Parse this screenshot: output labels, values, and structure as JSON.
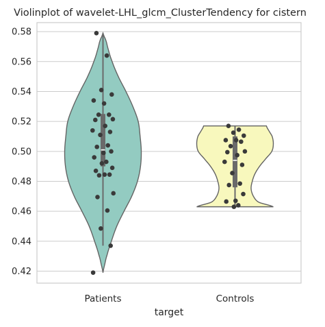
{
  "chart_data": {
    "type": "violin",
    "title": "Violinplot of wavelet-LHL_glcm_ClusterTendency for cistern",
    "xlabel": "target",
    "ylabel": "",
    "categories": [
      "Patients",
      "Controls"
    ],
    "ylim": [
      0.412,
      0.586
    ],
    "yticks": [
      0.42,
      0.44,
      0.46,
      0.48,
      0.5,
      0.52,
      0.54,
      0.56,
      0.58
    ],
    "ytick_labels": [
      "0.42",
      "0.44",
      "0.46",
      "0.48",
      "0.50",
      "0.52",
      "0.54",
      "0.56",
      "0.58"
    ],
    "grid": true,
    "colors": {
      "Patients": "#93cbc1",
      "Controls": "#f8f8bd",
      "points": "#3a3a3a",
      "violin_edge": "#636363",
      "box": "#6a6a6a",
      "median": "#ffffff"
    },
    "violins": [
      {
        "category": "Patients",
        "range": [
          0.419,
          0.579
        ],
        "box": {
          "q1": 0.49,
          "median": 0.501,
          "q3": 0.525,
          "whisker_low": 0.437,
          "whisker_high": 0.579
        },
        "density": [
          [
            0.419,
            0.0
          ],
          [
            0.425,
            0.05
          ],
          [
            0.43,
            0.1
          ],
          [
            0.44,
            0.22
          ],
          [
            0.45,
            0.36
          ],
          [
            0.46,
            0.55
          ],
          [
            0.47,
            0.75
          ],
          [
            0.48,
            0.9
          ],
          [
            0.49,
            0.98
          ],
          [
            0.5,
            1.0
          ],
          [
            0.51,
            0.97
          ],
          [
            0.52,
            0.92
          ],
          [
            0.53,
            0.78
          ],
          [
            0.54,
            0.6
          ],
          [
            0.55,
            0.4
          ],
          [
            0.56,
            0.24
          ],
          [
            0.568,
            0.14
          ],
          [
            0.574,
            0.08
          ],
          [
            0.579,
            0.0
          ]
        ],
        "points": [
          0.579,
          0.564,
          0.541,
          0.538,
          0.534,
          0.532,
          0.5245,
          0.5245,
          0.5215,
          0.521,
          0.517,
          0.514,
          0.513,
          0.511,
          0.504,
          0.503,
          0.5,
          0.499,
          0.496,
          0.493,
          0.492,
          0.489,
          0.487,
          0.4845,
          0.4845,
          0.484,
          0.472,
          0.4695,
          0.4605,
          0.4485,
          0.437,
          0.419
        ]
      },
      {
        "category": "Controls",
        "range": [
          0.463,
          0.517
        ],
        "box": {
          "q1": 0.476,
          "median": 0.494,
          "q3": 0.51,
          "whisker_low": 0.463,
          "whisker_high": 0.517
        },
        "density": [
          [
            0.463,
            1.0
          ],
          [
            0.466,
            0.62
          ],
          [
            0.47,
            0.48
          ],
          [
            0.475,
            0.42
          ],
          [
            0.48,
            0.45
          ],
          [
            0.485,
            0.52
          ],
          [
            0.49,
            0.64
          ],
          [
            0.495,
            0.8
          ],
          [
            0.5,
            0.96
          ],
          [
            0.505,
            1.0
          ],
          [
            0.51,
            0.97
          ],
          [
            0.514,
            0.88
          ],
          [
            0.517,
            0.82
          ]
        ],
        "points": [
          0.517,
          0.5145,
          0.5125,
          0.5105,
          0.5075,
          0.5075,
          0.5065,
          0.5035,
          0.5,
          0.4995,
          0.4975,
          0.493,
          0.491,
          0.4855,
          0.4785,
          0.4775,
          0.4715,
          0.467,
          0.4665,
          0.464,
          0.463
        ]
      }
    ]
  }
}
